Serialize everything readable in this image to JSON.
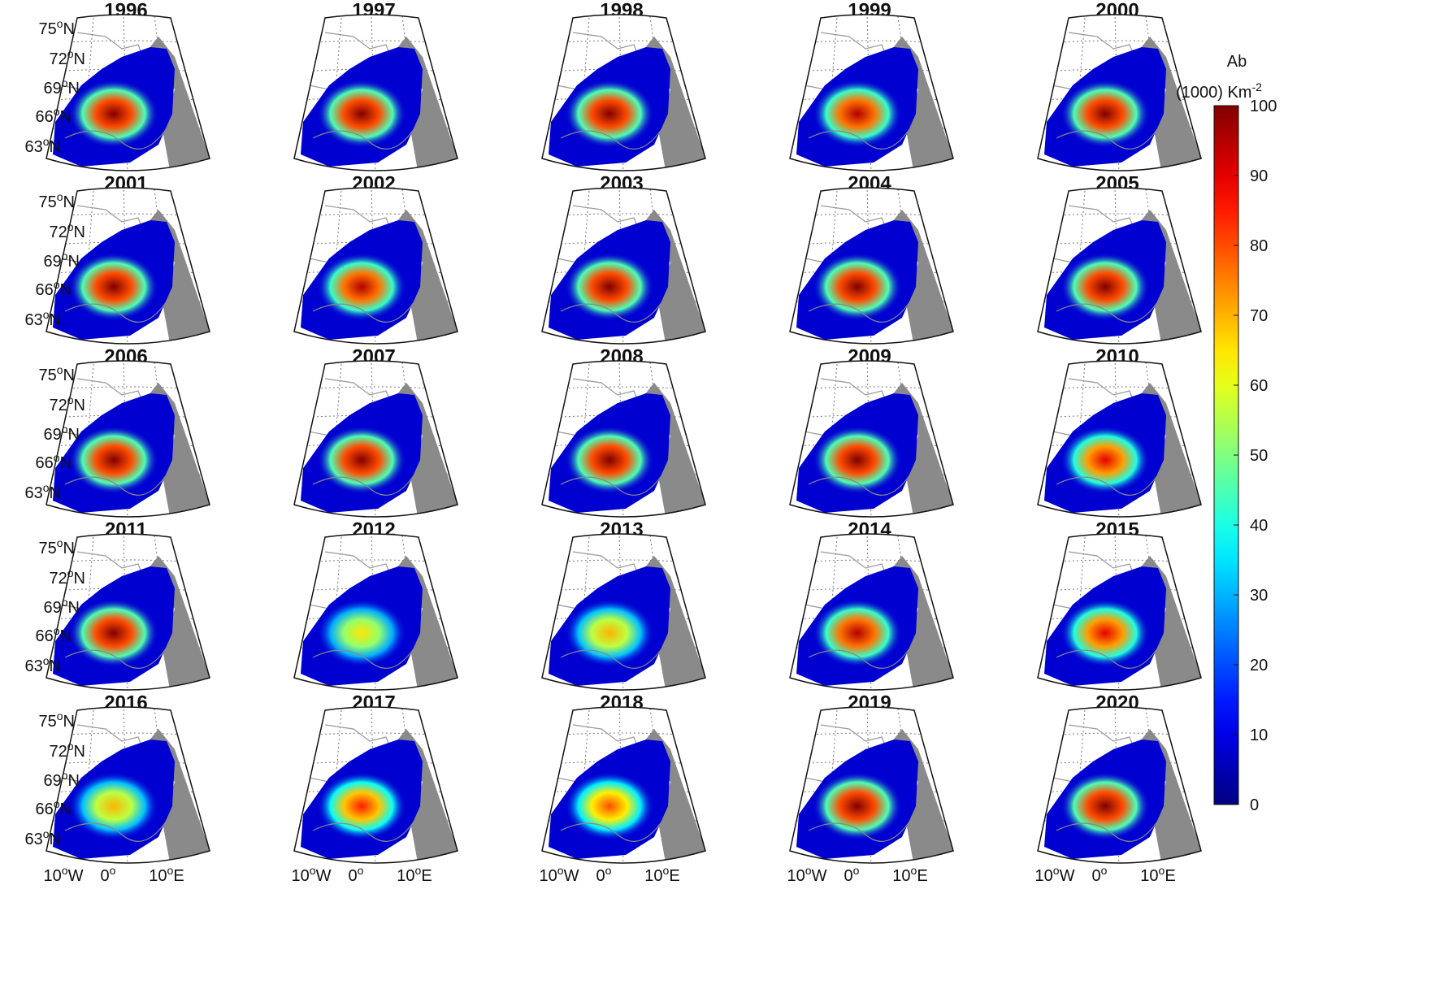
{
  "panels": [
    {
      "title": "1996",
      "peak": 100
    },
    {
      "title": "1997",
      "peak": 100
    },
    {
      "title": "1998",
      "peak": 100
    },
    {
      "title": "1999",
      "peak": 95
    },
    {
      "title": "2000",
      "peak": 100
    },
    {
      "title": "2001",
      "peak": 100
    },
    {
      "title": "2002",
      "peak": 95
    },
    {
      "title": "2003",
      "peak": 100
    },
    {
      "title": "2004",
      "peak": 100
    },
    {
      "title": "2005",
      "peak": 100
    },
    {
      "title": "2006",
      "peak": 100
    },
    {
      "title": "2007",
      "peak": 100
    },
    {
      "title": "2008",
      "peak": 100
    },
    {
      "title": "2009",
      "peak": 100
    },
    {
      "title": "2010",
      "peak": 90
    },
    {
      "title": "2011",
      "peak": 100
    },
    {
      "title": "2012",
      "peak": 65
    },
    {
      "title": "2013",
      "peak": 70
    },
    {
      "title": "2014",
      "peak": 95
    },
    {
      "title": "2015",
      "peak": 90
    },
    {
      "title": "2016",
      "peak": 70
    },
    {
      "title": "2017",
      "peak": 85
    },
    {
      "title": "2018",
      "peak": 80
    },
    {
      "title": "2019",
      "peak": 100
    },
    {
      "title": "2020",
      "peak": 100
    }
  ],
  "lat_labels": [
    {
      "deg": "75",
      "sup": "o",
      "hem": "N"
    },
    {
      "deg": "72",
      "sup": "o",
      "hem": "N"
    },
    {
      "deg": "69",
      "sup": "o",
      "hem": "N"
    },
    {
      "deg": "66",
      "sup": "o",
      "hem": "N"
    },
    {
      "deg": "63",
      "sup": "o",
      "hem": "N"
    }
  ],
  "lon_labels": [
    {
      "deg": "10",
      "sup": "o",
      "hem": "W"
    },
    {
      "deg": "0",
      "sup": "o"
    },
    {
      "deg": "10",
      "sup": "o",
      "hem": "E"
    }
  ],
  "colorbar": {
    "title": "Ab",
    "unit": "(1000) Km",
    "unit_sup": "-2",
    "lim": [
      0,
      100
    ],
    "ticks": [
      0,
      10,
      20,
      30,
      40,
      50,
      60,
      70,
      80,
      90,
      100
    ]
  }
}
